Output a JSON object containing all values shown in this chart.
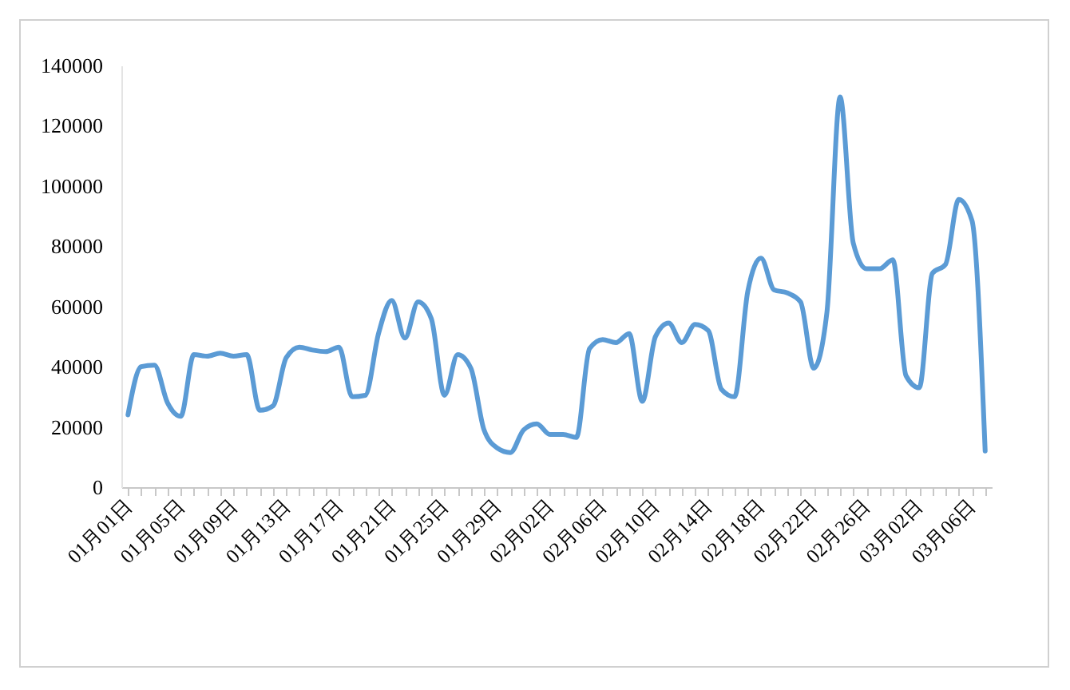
{
  "chart_data": {
    "type": "line",
    "color": "#5b9bd5",
    "marker": "none",
    "categories": [
      "01月01日",
      null,
      null,
      null,
      "01月05日",
      null,
      null,
      null,
      "01月09日",
      null,
      null,
      null,
      "01月13日",
      null,
      null,
      null,
      "01月17日",
      null,
      null,
      null,
      "01月21日",
      null,
      null,
      null,
      "01月25日",
      null,
      null,
      null,
      "01月29日",
      null,
      null,
      null,
      "02月02日",
      null,
      null,
      null,
      "02月06日",
      null,
      null,
      null,
      "02月10日",
      null,
      null,
      null,
      "02月14日",
      null,
      null,
      null,
      "02月18日",
      null,
      null,
      null,
      "02月22日",
      null,
      null,
      null,
      "02月26日",
      null,
      null,
      null,
      "03月02日",
      null,
      null,
      null,
      "03月06日",
      null
    ],
    "values": [
      24000,
      40000,
      40500,
      28000,
      23500,
      44000,
      43500,
      44500,
      43500,
      44000,
      25500,
      27000,
      43000,
      46500,
      45500,
      45000,
      46500,
      30000,
      30500,
      51000,
      62000,
      49500,
      61500,
      56000,
      30500,
      44000,
      39500,
      19000,
      13000,
      11500,
      19000,
      21000,
      17500,
      17500,
      16500,
      46000,
      49000,
      48000,
      51000,
      28500,
      50000,
      54500,
      48000,
      54000,
      52000,
      32500,
      30000,
      65000,
      76000,
      65500,
      64500,
      61500,
      39500,
      58000,
      129500,
      81000,
      72500,
      72500,
      75500,
      37000,
      33000,
      71000,
      74000,
      95500,
      88500,
      12000
    ],
    "ylim": [
      0,
      140000
    ],
    "yticks": [
      0,
      20000,
      40000,
      60000,
      80000,
      100000,
      120000,
      140000
    ]
  }
}
